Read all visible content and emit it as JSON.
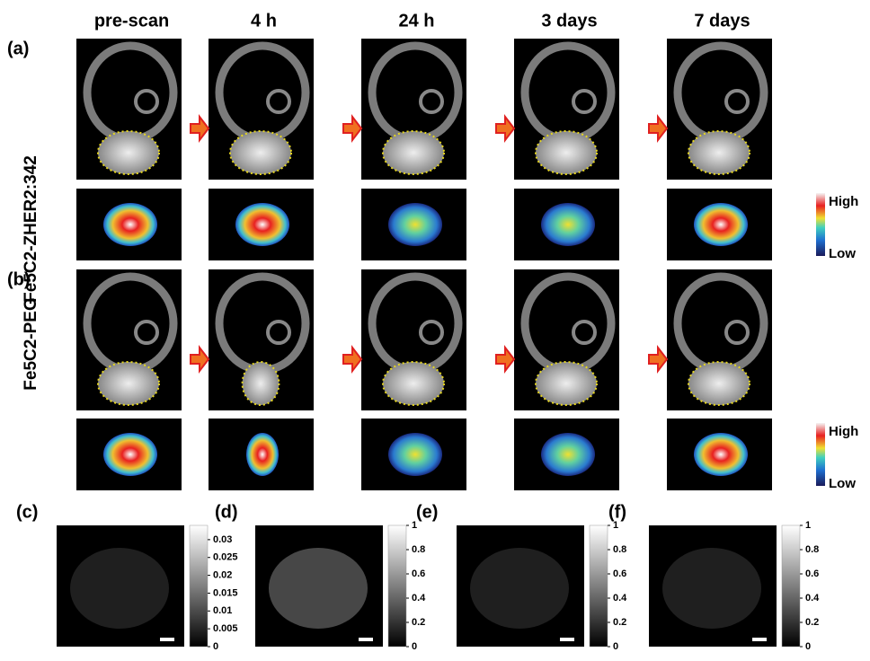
{
  "column_headers": [
    "pre-scan",
    "4 h",
    "24 h",
    "3  days",
    "7 days"
  ],
  "rows": [
    {
      "label": "(a)",
      "agent": "Fe5C2-ZHER2:342",
      "colorbar": {
        "high": "High",
        "low": "Low"
      }
    },
    {
      "label": "(b)",
      "agent": "Fe5C2-PEG",
      "colorbar": {
        "high": "High",
        "low": "Low"
      }
    }
  ],
  "panels": [
    {
      "label": "(c)",
      "colorbar": {
        "lim": [
          0,
          0.034
        ],
        "ticks": [
          0.03,
          0.025,
          0.02,
          0.015,
          0.01,
          0.005,
          0
        ]
      }
    },
    {
      "label": "(d)",
      "colorbar": {
        "lim": [
          0,
          1
        ],
        "ticks": [
          1,
          0.8,
          0.6,
          0.4,
          0.2,
          0
        ]
      }
    },
    {
      "label": "(e)",
      "colorbar": {
        "lim": [
          0,
          1
        ],
        "ticks": [
          1,
          0.8,
          0.6,
          0.4,
          0.2,
          0
        ]
      }
    },
    {
      "label": "(f)",
      "colorbar": {
        "lim": [
          0,
          1
        ],
        "ticks": [
          1,
          0.8,
          0.6,
          0.4,
          0.2,
          0
        ]
      }
    }
  ]
}
